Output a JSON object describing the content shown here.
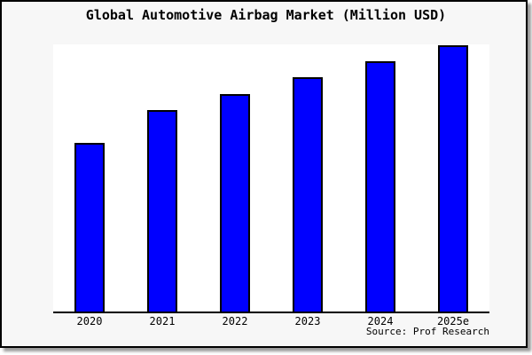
{
  "chart": {
    "title": "Global Automotive Airbag Market (Million USD)",
    "source": "Source: Prof Research"
  },
  "chart_data": {
    "type": "bar",
    "title": "Global Automotive Airbag Market (Million USD)",
    "categories": [
      "2020",
      "2021",
      "2022",
      "2023",
      "2024",
      "2025e"
    ],
    "values": [
      190,
      227,
      245,
      264,
      282,
      300
    ],
    "value_units": "relative bar height in px; no y-axis scale or value labels are shown in the image",
    "xlabel": "",
    "ylabel": "",
    "ylim": [
      0,
      301
    ],
    "grid": false,
    "legend": "none",
    "source_note": "Source: Prof Research",
    "colors": {
      "bar_fill": "#0000ff",
      "bar_border": "#000000",
      "plot_background": "#ffffff",
      "frame_background": "#f7f7f7",
      "frame_border": "#000000",
      "axis_line": "#000000",
      "text": "#000000"
    }
  }
}
